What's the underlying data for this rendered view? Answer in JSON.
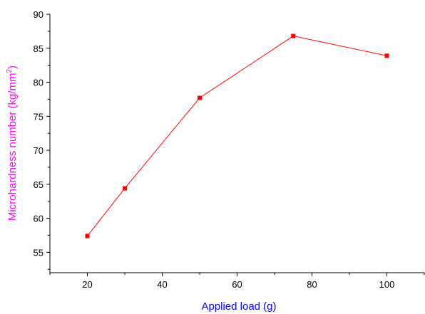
{
  "chart_data": {
    "type": "line",
    "title": "",
    "xlabel": "Applied load (g)",
    "ylabel": {
      "prefix": "Microhardness number (kg/mm",
      "superscript": "2",
      "suffix": ")"
    },
    "xlim": [
      10,
      110
    ],
    "ylim": [
      52,
      90
    ],
    "xticks": [
      20,
      40,
      60,
      80,
      100
    ],
    "yticks": [
      55,
      60,
      65,
      70,
      75,
      80,
      85,
      90
    ],
    "grid": false,
    "series": [
      {
        "x": [
          20,
          30,
          50,
          75,
          100
        ],
        "y": [
          57.4,
          64.4,
          77.7,
          86.8,
          83.9
        ]
      }
    ],
    "colors": {
      "series": "#ff0000",
      "xlabel": "#0000ff",
      "ylabel": "#ff00ff",
      "axis": "#000000"
    }
  }
}
